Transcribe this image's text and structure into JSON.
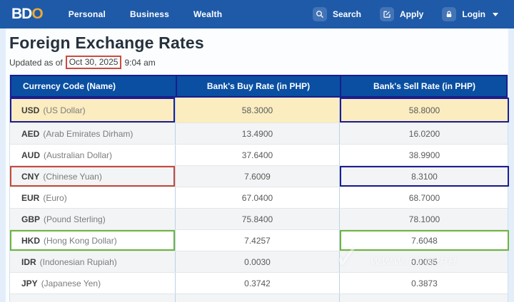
{
  "navbar": {
    "logo_bd": "BD",
    "logo_o": "O",
    "menu": [
      "Personal",
      "Business",
      "Wealth"
    ],
    "search_label": "Search",
    "apply_label": "Apply",
    "login_label": "Login"
  },
  "page": {
    "title": "Foreign Exchange Rates",
    "updated_prefix": "Updated as of",
    "updated_date": "Oct 30, 2025",
    "updated_time": "9:04 am"
  },
  "table": {
    "headers": [
      "Currency Code (Name)",
      "Bank's Buy Rate (in PHP)",
      "Bank's Sell Rate (in PHP)"
    ],
    "rows": [
      {
        "code": "USD",
        "name": "(US Dollar)",
        "buy": "58.3000",
        "sell": "58.8000",
        "highlight": true,
        "code_annotation": "navy",
        "sell_annotation": "navy"
      },
      {
        "code": "AED",
        "name": "(Arab Emirates Dirham)",
        "buy": "13.4900",
        "sell": "16.0200",
        "highlight": false,
        "code_annotation": "",
        "sell_annotation": ""
      },
      {
        "code": "AUD",
        "name": "(Australian Dollar)",
        "buy": "37.6400",
        "sell": "38.9900",
        "highlight": false,
        "code_annotation": "",
        "sell_annotation": ""
      },
      {
        "code": "CNY",
        "name": "(Chinese Yuan)",
        "buy": "7.6009",
        "sell": "8.3100",
        "highlight": false,
        "code_annotation": "red",
        "sell_annotation": "navy"
      },
      {
        "code": "EUR",
        "name": "(Euro)",
        "buy": "67.0400",
        "sell": "68.7000",
        "highlight": false,
        "code_annotation": "",
        "sell_annotation": ""
      },
      {
        "code": "GBP",
        "name": "(Pound Sterling)",
        "buy": "75.8400",
        "sell": "78.1000",
        "highlight": false,
        "code_annotation": "",
        "sell_annotation": ""
      },
      {
        "code": "HKD",
        "name": "(Hong Kong Dollar)",
        "buy": "7.4257",
        "sell": "7.6048",
        "highlight": false,
        "code_annotation": "green",
        "sell_annotation": "green"
      },
      {
        "code": "IDR",
        "name": "(Indonesian Rupiah)",
        "buy": "0.0030",
        "sell": "0.0035",
        "highlight": false,
        "code_annotation": "",
        "sell_annotation": ""
      },
      {
        "code": "JPY",
        "name": "(Japanese Yen)",
        "buy": "0.3742",
        "sell": "0.3873",
        "highlight": false,
        "code_annotation": "",
        "sell_annotation": ""
      }
    ]
  },
  "watermark": {
    "check": "✓",
    "text": "WWW.FTW.PH"
  },
  "colors": {
    "brand_blue": "#1f5aa8",
    "table_header_blue": "#0a4fa2",
    "logo_gold": "#eba937",
    "highlight_yellow": "#fbedc0",
    "annotation_navy": "#1c1d92",
    "annotation_red": "#c9483a",
    "annotation_green": "#6cb53e"
  }
}
